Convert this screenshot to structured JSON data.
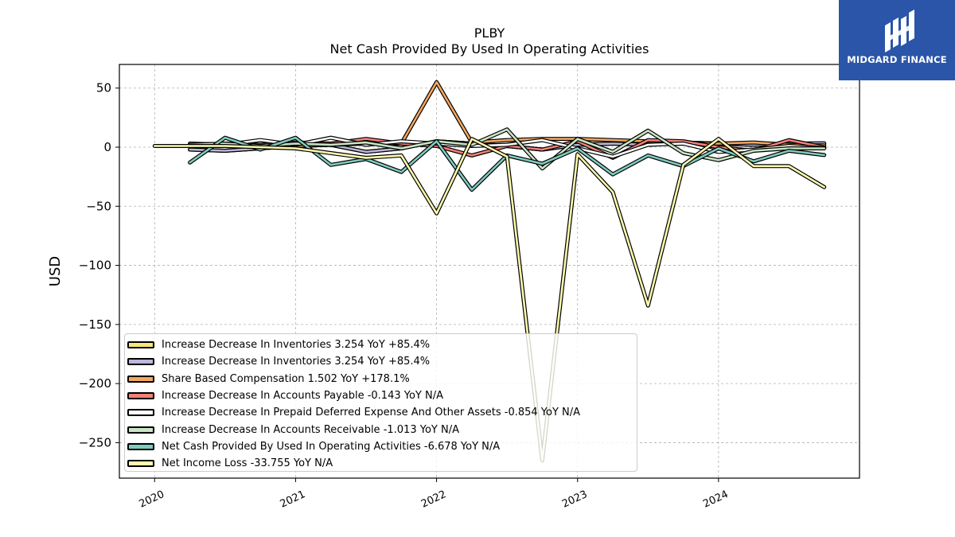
{
  "header": {
    "title": "PLBY",
    "subtitle": "Net Cash Provided By Used In Operating Activities"
  },
  "logo": {
    "text": "MIDGARD FINANCE",
    "background": "#2a55a8"
  },
  "chart_data": {
    "type": "line",
    "title": "PLBY",
    "subtitle": "Net Cash Provided By Used In Operating Activities",
    "xlabel": "",
    "ylabel": "USD",
    "xlim": [
      2019.75,
      2025.0
    ],
    "ylim": [
      -280,
      70
    ],
    "x_ticks": [
      2020,
      2021,
      2022,
      2023,
      2024
    ],
    "x_tick_labels": [
      "2020",
      "2021",
      "2022",
      "2023",
      "2024"
    ],
    "y_ticks": [
      50,
      0,
      -50,
      -100,
      -150,
      -200,
      -250
    ],
    "y_tick_labels": [
      "50",
      "0",
      "−50",
      "−100",
      "−150",
      "−200",
      "−250"
    ],
    "grid": true,
    "legend_position": "lower-left",
    "series": [
      {
        "name": "Increase Decrease In Inventories",
        "legend_label": "Increase Decrease In Inventories  3.254 YoY +85.4%",
        "color": "#f7e67a",
        "x": [
          2020.25,
          2020.5,
          2020.75,
          2021.0,
          2021.25,
          2021.5,
          2021.75,
          2022.0,
          2022.25,
          2022.5,
          2022.75,
          2023.0,
          2023.25,
          2023.5,
          2023.75,
          2024.0,
          2024.25,
          2024.5,
          2024.75
        ],
        "values": [
          -2,
          -3,
          -1,
          1,
          2,
          -4,
          -1,
          5,
          3,
          1,
          -2,
          2,
          3,
          2,
          4,
          3,
          2,
          3,
          3.254
        ]
      },
      {
        "name": "Increase Decrease In Inventories",
        "legend_label": "Increase Decrease In Inventories  3.254 YoY +85.4%",
        "color": "#bcb7d8",
        "x": [
          2020.25,
          2020.5,
          2020.75,
          2021.0,
          2021.25,
          2021.5,
          2021.75,
          2022.0,
          2022.25,
          2022.5,
          2022.75,
          2023.0,
          2023.25,
          2023.5,
          2023.75,
          2024.0,
          2024.25,
          2024.5,
          2024.75
        ],
        "values": [
          -2,
          -3,
          -1,
          1,
          2,
          -4,
          -1,
          5,
          3,
          1,
          -2,
          2,
          3,
          2,
          4,
          3,
          2,
          3,
          3.254
        ]
      },
      {
        "name": "Share Based Compensation",
        "legend_label": "Share Based Compensation  1.502 YoY +178.1%",
        "color": "#f5a75e",
        "x": [
          2020.25,
          2020.5,
          2020.75,
          2021.0,
          2021.25,
          2021.5,
          2021.75,
          2022.0,
          2022.25,
          2022.5,
          2022.75,
          2023.0,
          2023.25,
          2023.5,
          2023.75,
          2024.0,
          2024.25,
          2024.5,
          2024.75
        ],
        "values": [
          1,
          1,
          1,
          1,
          2,
          3,
          3,
          55,
          4,
          6,
          7,
          7,
          6,
          5,
          3,
          3,
          4,
          2,
          1.502
        ]
      },
      {
        "name": "Increase Decrease In Accounts Payable",
        "legend_label": "Increase Decrease In Accounts Payable  -0.143 YoY N/A",
        "color": "#f2817a",
        "x": [
          2020.25,
          2020.5,
          2020.75,
          2021.0,
          2021.25,
          2021.5,
          2021.75,
          2022.0,
          2022.25,
          2022.5,
          2022.75,
          2023.0,
          2023.25,
          2023.5,
          2023.75,
          2024.0,
          2024.25,
          2024.5,
          2024.75
        ],
        "values": [
          2,
          3,
          2,
          4,
          3,
          7,
          3,
          1,
          -7,
          1,
          -2,
          5,
          -9,
          6,
          5,
          0,
          -3,
          6,
          -0.143
        ]
      },
      {
        "name": "Increase Decrease In Prepaid Deferred Expense And Other Assets",
        "legend_label": "Increase Decrease In Prepaid Deferred Expense And Other Assets  -0.854 YoY N/A",
        "color": "#ffffff",
        "x": [
          2020.25,
          2020.5,
          2020.75,
          2021.0,
          2021.25,
          2021.5,
          2021.75,
          2022.0,
          2022.25,
          2022.5,
          2022.75,
          2023.0,
          2023.25,
          2023.5,
          2023.75,
          2024.0,
          2024.25,
          2024.5,
          2024.75
        ],
        "values": [
          3,
          2,
          6,
          2,
          8,
          2,
          5,
          3,
          1,
          2,
          6,
          -1,
          -8,
          2,
          3,
          -4,
          -2,
          1,
          -0.854
        ]
      },
      {
        "name": "Increase Decrease In Accounts Receivable",
        "legend_label": "Increase Decrease In Accounts Receivable  -1.013 YoY N/A",
        "color": "#c8e6c4",
        "x": [
          2020.25,
          2020.5,
          2020.75,
          2021.0,
          2021.25,
          2021.5,
          2021.75,
          2022.0,
          2022.25,
          2022.5,
          2022.75,
          2023.0,
          2023.25,
          2023.5,
          2023.75,
          2024.0,
          2024.25,
          2024.5,
          2024.75
        ],
        "values": [
          2,
          3,
          1,
          3,
          2,
          4,
          -1,
          5,
          2,
          15,
          -18,
          7,
          -4,
          14,
          -5,
          -11,
          -3,
          -1,
          -1.013
        ]
      },
      {
        "name": "Net Cash Provided By Used In Operating Activities",
        "legend_label": "Net Cash Provided By Used In Operating Activities  -6.678 YoY N/A",
        "color": "#7fcbc0",
        "x": [
          2020.25,
          2020.5,
          2020.75,
          2021.0,
          2021.25,
          2021.5,
          2021.75,
          2022.0,
          2022.25,
          2022.5,
          2022.75,
          2023.0,
          2023.25,
          2023.5,
          2023.75,
          2024.0,
          2024.25,
          2024.5,
          2024.75
        ],
        "values": [
          -13,
          8,
          -2,
          8,
          -15,
          -10,
          -21,
          5,
          -36,
          -7,
          -14,
          -1,
          -23,
          -7,
          -16,
          -1,
          -12,
          -3,
          -6.678
        ]
      },
      {
        "name": "Net Income Loss",
        "legend_label": "Net Income Loss  -33.755 YoY N/A",
        "color": "#fdfbaf",
        "x": [
          2020.0,
          2020.5,
          2021.0,
          2021.5,
          2021.75,
          2022.0,
          2022.25,
          2022.5,
          2022.75,
          2023.0,
          2023.25,
          2023.5,
          2023.75,
          2024.0,
          2024.25,
          2024.5,
          2024.75
        ],
        "values": [
          1,
          1,
          -1,
          -9,
          -7,
          -56,
          7,
          -8,
          -265,
          -6,
          -38,
          -134,
          -15,
          7,
          -16,
          -16,
          -33.755
        ]
      }
    ]
  }
}
